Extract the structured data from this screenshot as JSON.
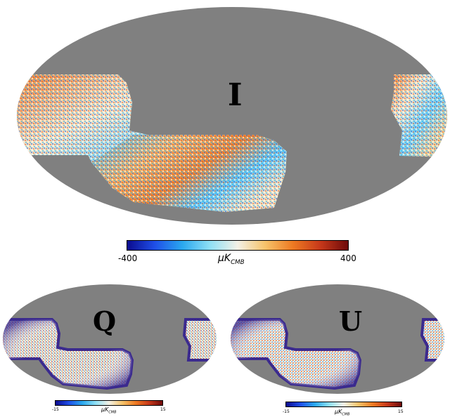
{
  "maps": [
    {
      "label": "I",
      "colorbar": {
        "min": "-400",
        "max": "400",
        "unit_main": "μK",
        "unit_sub": "CMB"
      }
    },
    {
      "label": "Q",
      "colorbar": {
        "min": "-15",
        "max": "15",
        "unit_main": "μK",
        "unit_sub": "CMB"
      }
    },
    {
      "label": "U",
      "colorbar": {
        "min": "-15",
        "max": "15",
        "unit_main": "μK",
        "unit_sub": "CMB"
      }
    }
  ],
  "colors": {
    "masked": "#808080",
    "background": "#ffffff",
    "edge": "#3b2a8e",
    "colormap": [
      "#0b0b8f",
      "#1f4fe8",
      "#2aa8ee",
      "#8fe0f5",
      "#f3f1e6",
      "#f6c36a",
      "#ee7a22",
      "#c6381a",
      "#6e0a0a"
    ]
  }
}
